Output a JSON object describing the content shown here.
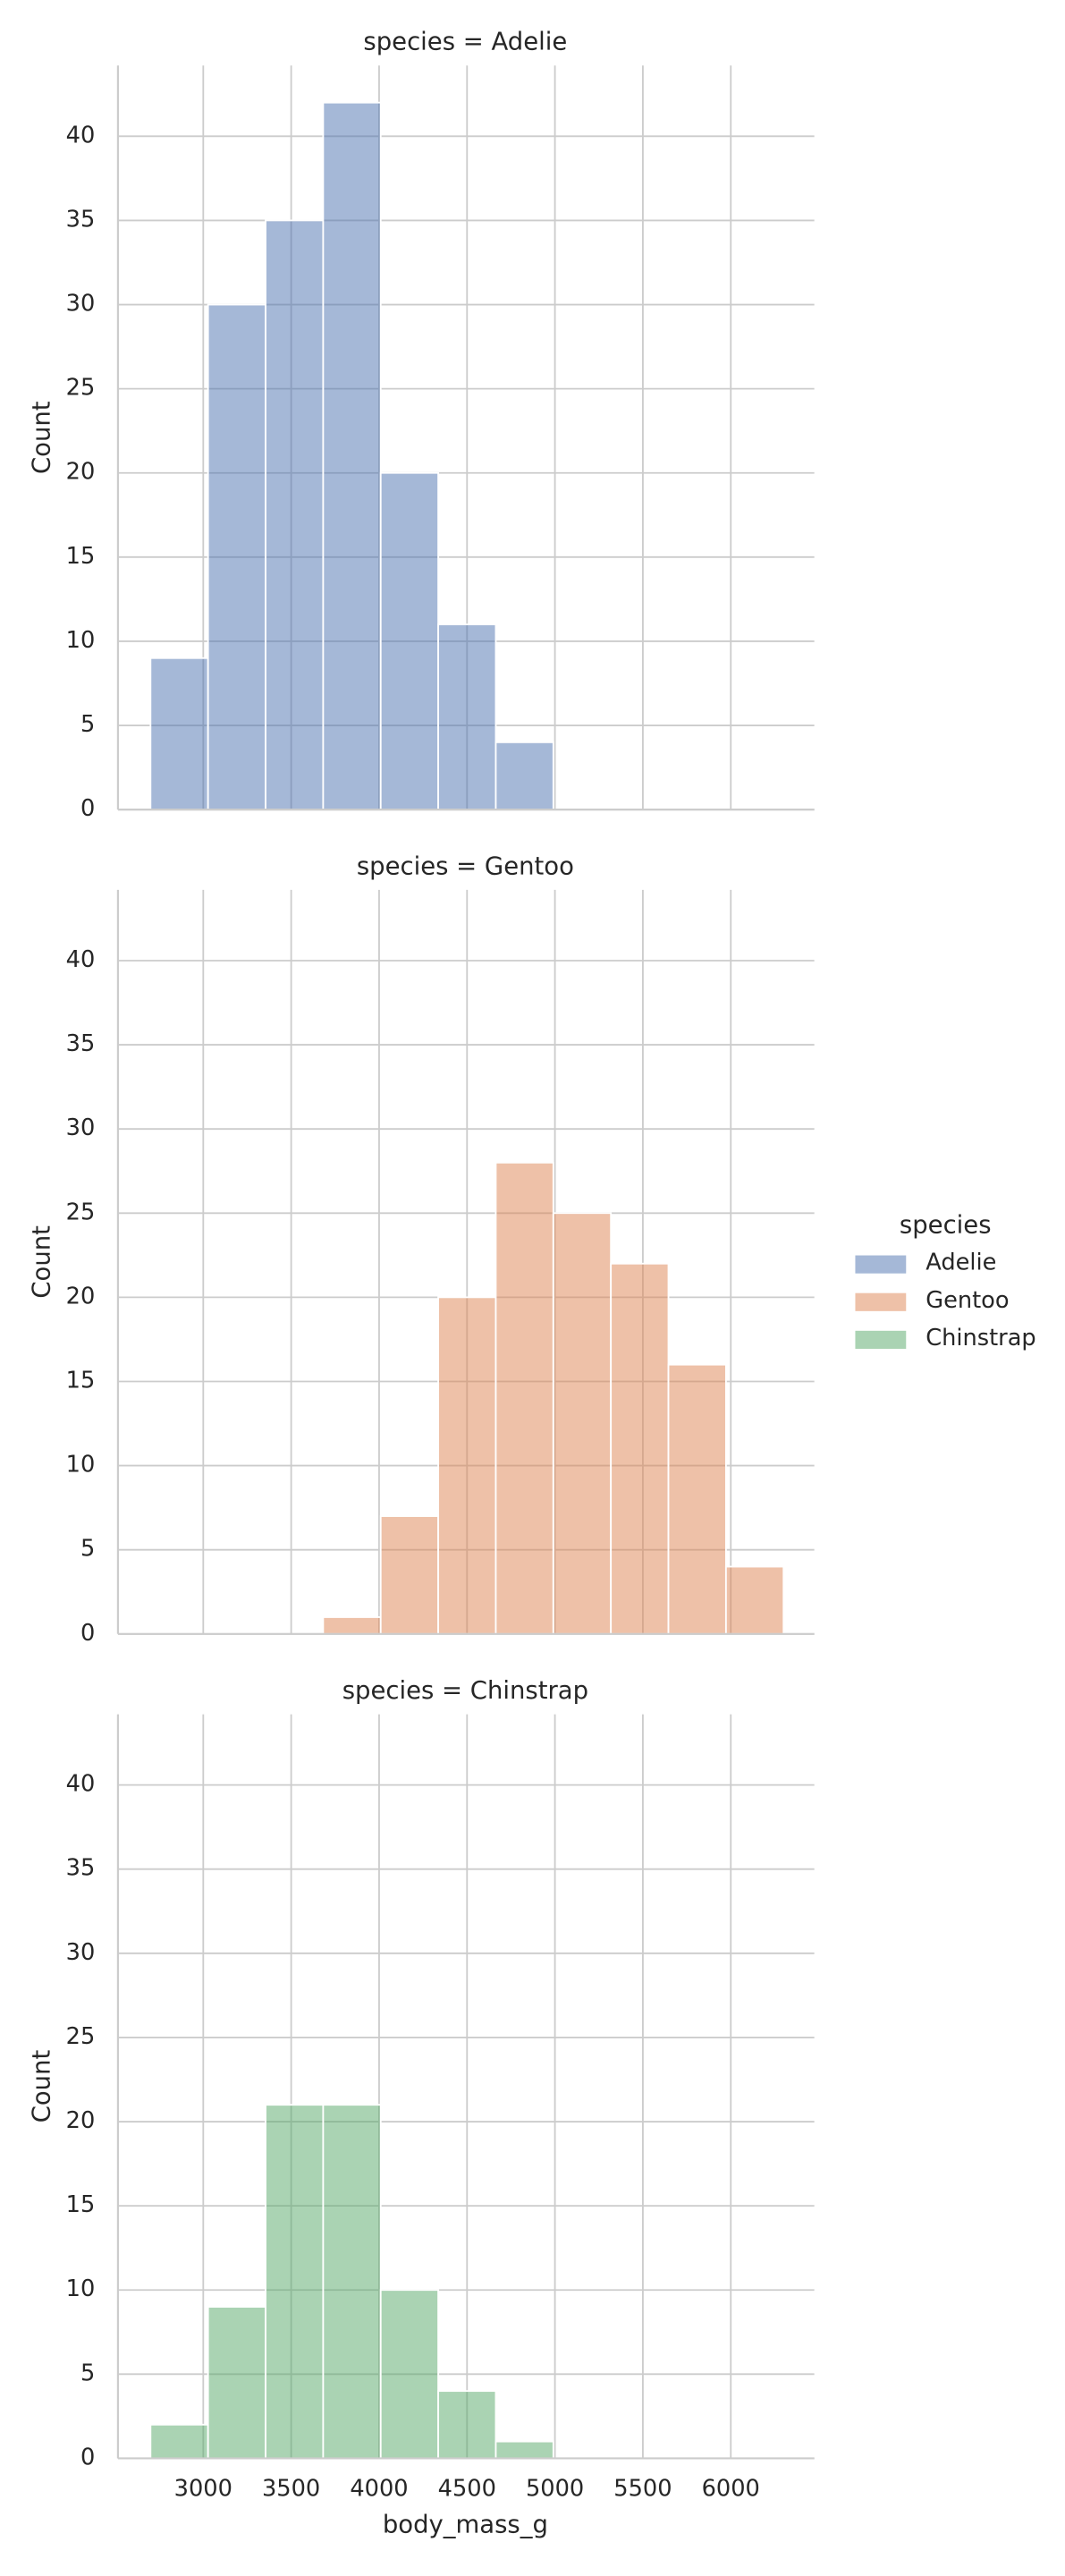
{
  "chart_data": [
    {
      "type": "histogram",
      "title": "species = Adelie",
      "ylabel": "Count",
      "color": "#4c72b0",
      "bins": [
        2700,
        3027.27,
        3354.55,
        3681.82,
        4009.09,
        4336.36,
        4663.64,
        4990.91,
        5318.18,
        5645.45,
        5972.73,
        6300
      ],
      "values": [
        9,
        30,
        35,
        42,
        20,
        11,
        4,
        0,
        0,
        0,
        0
      ],
      "xlim": [
        2515,
        6475
      ],
      "xticks": [
        3000,
        3500,
        4000,
        4500,
        5000,
        5500,
        6000
      ],
      "ylim": [
        0,
        44.2
      ],
      "yticks": [
        0,
        5,
        10,
        15,
        20,
        25,
        30,
        35,
        40
      ],
      "grid": true
    },
    {
      "type": "histogram",
      "title": "species = Gentoo",
      "ylabel": "Count",
      "color": "#dd8452",
      "bins": [
        2700,
        3027.27,
        3354.55,
        3681.82,
        4009.09,
        4336.36,
        4663.64,
        4990.91,
        5318.18,
        5645.45,
        5972.73,
        6300
      ],
      "values": [
        0,
        0,
        0,
        1,
        7,
        20,
        28,
        25,
        22,
        16,
        4
      ],
      "xlim": [
        2515,
        6475
      ],
      "xticks": [
        3000,
        3500,
        4000,
        4500,
        5000,
        5500,
        6000
      ],
      "ylim": [
        0,
        44.2
      ],
      "yticks": [
        0,
        5,
        10,
        15,
        20,
        25,
        30,
        35,
        40
      ],
      "grid": true
    },
    {
      "type": "histogram",
      "title": "species = Chinstrap",
      "ylabel": "Count",
      "xlabel": "body_mass_g",
      "color": "#55a868",
      "bins": [
        2700,
        3027.27,
        3354.55,
        3681.82,
        4009.09,
        4336.36,
        4663.64,
        4990.91,
        5318.18,
        5645.45,
        5972.73,
        6300
      ],
      "values": [
        2,
        9,
        21,
        21,
        10,
        4,
        1,
        0,
        0,
        0,
        0
      ],
      "xlim": [
        2515,
        6475
      ],
      "xticks": [
        3000,
        3500,
        4000,
        4500,
        5000,
        5500,
        6000
      ],
      "ylim": [
        0,
        44.2
      ],
      "yticks": [
        0,
        5,
        10,
        15,
        20,
        25,
        30,
        35,
        40
      ],
      "grid": true
    }
  ],
  "legend": {
    "title": "species",
    "entries": [
      {
        "name": "Adelie",
        "color": "#4c72b0"
      },
      {
        "name": "Gentoo",
        "color": "#dd8452"
      },
      {
        "name": "Chinstrap",
        "color": "#55a868"
      }
    ]
  }
}
